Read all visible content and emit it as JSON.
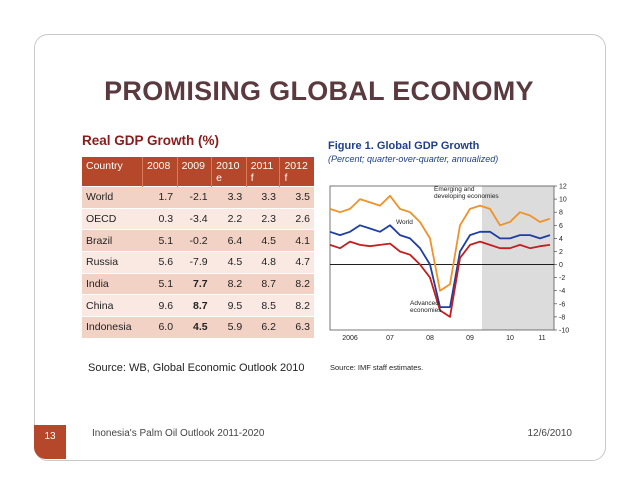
{
  "slide": {
    "title": "PROMISING GLOBAL ECONOMY",
    "table_title": "Real GDP Growth (%)",
    "source": "Source: WB, Global Economic Outlook 2010",
    "footer_left": "Inonesia's Palm Oil Outlook 2011-2020",
    "footer_right": "12/6/2010",
    "page_number": "13"
  },
  "table": {
    "headers": [
      "Country",
      "2008",
      "2009",
      "2010\ne",
      "2011\nf",
      "2012\nf"
    ],
    "rows": [
      [
        "World",
        "1.7",
        "-2.1",
        "3.3",
        "3.3",
        "3.5"
      ],
      [
        "OECD",
        "0.3",
        "-3.4",
        "2.2",
        "2.3",
        "2.6"
      ],
      [
        "Brazil",
        "5.1",
        "-0.2",
        "6.4",
        "4.5",
        "4.1"
      ],
      [
        "Russia",
        "5.6",
        "-7.9",
        "4.5",
        "4.8",
        "4.7"
      ],
      [
        "India",
        "5.1",
        "7.7",
        "8.2",
        "8.7",
        "8.2"
      ],
      [
        "China",
        "9.6",
        "8.7",
        "9.5",
        "8.5",
        "8.2"
      ],
      [
        "Indonesia",
        "6.0",
        "4.5",
        "5.9",
        "6.2",
        "6.3"
      ]
    ]
  },
  "figure": {
    "title": "Figure 1.  Global GDP Growth",
    "subtitle": "(Percent; quarter-over-quarter, annualized)",
    "source": "Source: IMF staff estimates."
  },
  "chart_data": {
    "type": "line",
    "x_ticks": [
      "2006",
      "07",
      "08",
      "09",
      "10",
      "11"
    ],
    "y_ticks": [
      12,
      10,
      8,
      6,
      4,
      2,
      0,
      -2,
      -4,
      -6,
      -8,
      -10
    ],
    "ylim": [
      -10,
      12
    ],
    "xlim": [
      2006.0,
      2011.6
    ],
    "shaded_region": [
      2009.8,
      2011.6
    ],
    "annotations": [
      "Emerging and developing economies",
      "World",
      "Advanced economies"
    ],
    "series": [
      {
        "name": "Emerging and developing economies",
        "color": "#f0922b",
        "x": [
          2006.0,
          2006.25,
          2006.5,
          2006.75,
          2007.0,
          2007.25,
          2007.5,
          2007.75,
          2008.0,
          2008.25,
          2008.5,
          2008.75,
          2009.0,
          2009.25,
          2009.5,
          2009.75,
          2010.0,
          2010.25,
          2010.5,
          2010.75,
          2011.0,
          2011.25,
          2011.5
        ],
        "y": [
          8.5,
          8,
          8.5,
          10,
          9.5,
          9,
          10.5,
          8.5,
          8,
          6.5,
          4,
          -4,
          -3,
          6,
          8.5,
          9,
          8.5,
          6,
          6.5,
          8,
          7.5,
          6.5,
          7
        ]
      },
      {
        "name": "World",
        "color": "#1f3fa0",
        "x": [
          2006.0,
          2006.25,
          2006.5,
          2006.75,
          2007.0,
          2007.25,
          2007.5,
          2007.75,
          2008.0,
          2008.25,
          2008.5,
          2008.75,
          2009.0,
          2009.25,
          2009.5,
          2009.75,
          2010.0,
          2010.25,
          2010.5,
          2010.75,
          2011.0,
          2011.25,
          2011.5
        ],
        "y": [
          5,
          4.5,
          5,
          6,
          5.5,
          5,
          6,
          4.5,
          4,
          2.5,
          0,
          -6.5,
          -6.5,
          2,
          4.5,
          5,
          5,
          4,
          4,
          4.5,
          4.5,
          4,
          4.5
        ]
      },
      {
        "name": "Advanced economies",
        "color": "#c41e1e",
        "x": [
          2006.0,
          2006.25,
          2006.5,
          2006.75,
          2007.0,
          2007.25,
          2007.5,
          2007.75,
          2008.0,
          2008.25,
          2008.5,
          2008.75,
          2009.0,
          2009.25,
          2009.5,
          2009.75,
          2010.0,
          2010.25,
          2010.5,
          2010.75,
          2011.0,
          2011.25,
          2011.5
        ],
        "y": [
          3,
          2.5,
          3.5,
          3,
          2.8,
          3,
          3.2,
          2,
          1.5,
          0,
          -2,
          -7,
          -8,
          1,
          3,
          3.5,
          3,
          2.5,
          2.5,
          3,
          2.5,
          2.8,
          3
        ]
      }
    ]
  }
}
